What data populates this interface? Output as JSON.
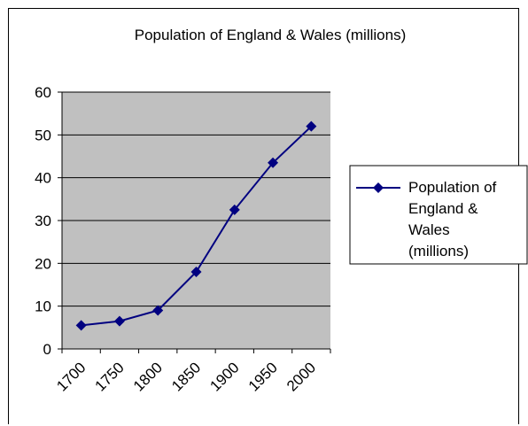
{
  "chart_data": {
    "type": "line",
    "title": "Population of England & Wales (millions)",
    "xlabel": "",
    "ylabel": "",
    "categories": [
      "1700",
      "1750",
      "1800",
      "1850",
      "1900",
      "1950",
      "2000"
    ],
    "series": [
      {
        "name": "Population of England & Wales (millions)",
        "values": [
          5.5,
          6.5,
          9,
          18,
          32.5,
          43.5,
          52
        ],
        "color": "#000080",
        "marker": "diamond"
      }
    ],
    "ylim": [
      0,
      60
    ],
    "yticks": [
      0,
      10,
      20,
      30,
      40,
      50,
      60
    ],
    "grid": true,
    "plot_background": "#c0c0c0",
    "legend_position": "right",
    "legend_lines": [
      "Population of",
      "England &",
      "Wales",
      "(millions)"
    ]
  }
}
